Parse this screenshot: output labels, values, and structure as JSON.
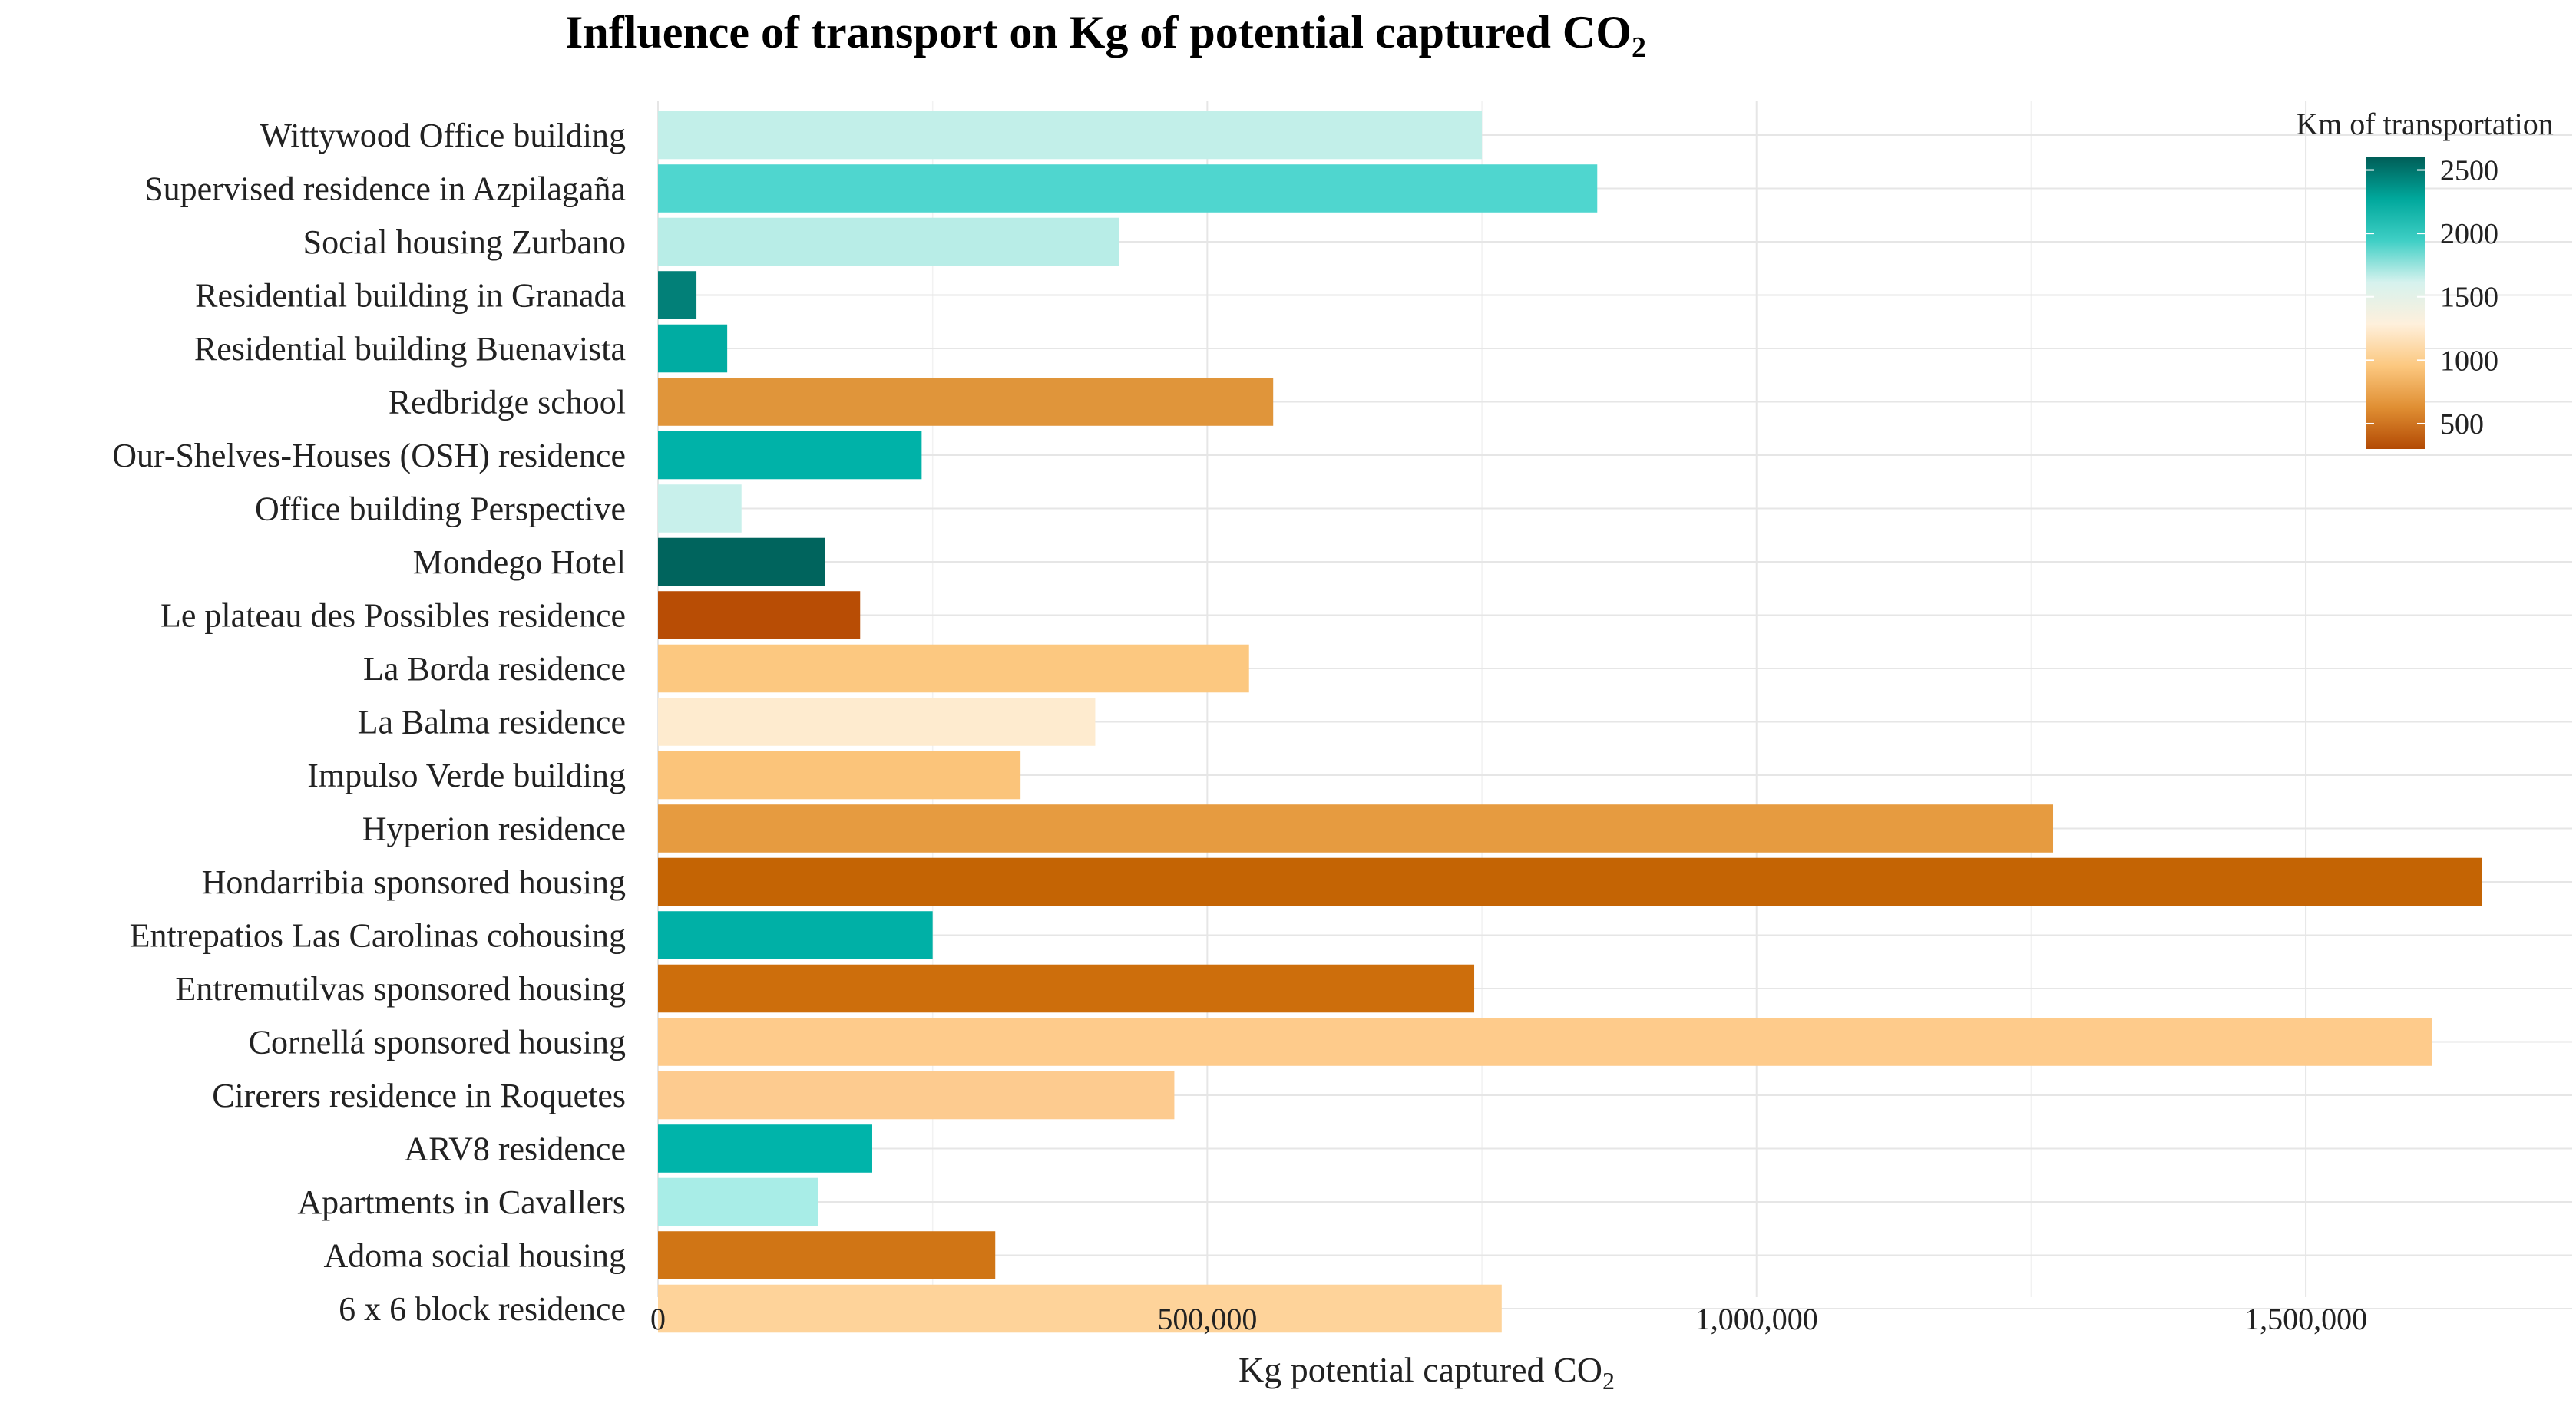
{
  "chart_data": {
    "type": "bar",
    "orientation": "horizontal",
    "title": "Influence of transport on Kg of potential captured CO",
    "title_subscript": "2",
    "xlabel": "Kg potential captured CO",
    "xlabel_subscript": "2",
    "ylabel": "",
    "xlim": [
      0,
      1750000
    ],
    "xticks": [
      0,
      500000,
      1000000,
      1500000
    ],
    "xtick_labels": [
      "0",
      "500,000",
      "1,000,000",
      "1,500,000"
    ],
    "grid": true,
    "legend": {
      "title": "Km of transportation",
      "placement": "top-right",
      "type": "colorbar",
      "range": [
        300,
        2600
      ],
      "ticks": [
        2500,
        2000,
        1500,
        1000,
        500
      ],
      "tick_labels": [
        "2500",
        "2000",
        "1500",
        "1000",
        "500"
      ],
      "colors": [
        "#b34a04",
        "#e08f33",
        "#fcc880",
        "#fef0dc",
        "#d6f2ee",
        "#3fcfc5",
        "#00a89c",
        "#005e58"
      ]
    },
    "categories": [
      "Wittywood Office building",
      "Supervised residence in Azpilagaña",
      "Social housing Zurbano",
      "Residential building in Granada",
      "Residential building Buenavista",
      "Redbridge school",
      "Our-Shelves-Houses (OSH) residence",
      "Office building Perspective",
      "Mondego Hotel",
      "Le plateau des Possibles residence",
      "La Borda residence",
      "La Balma residence",
      "Impulso Verde building",
      "Hyperion residence",
      "Hondarribia sponsored housing",
      "Entrepatios Las Carolinas cohousing",
      "Entremutilvas sponsored housing",
      "Cornellá sponsored housing",
      "Cirerers residence in Roquetes",
      "ARV8 residence",
      "Apartments in Cavallers",
      "Adoma social housing",
      "6 x 6 block residence"
    ],
    "values": [
      750000,
      855000,
      420000,
      35000,
      63000,
      560000,
      240000,
      76000,
      152000,
      184000,
      538000,
      398000,
      330000,
      1270000,
      1660000,
      250000,
      743000,
      1615000,
      470000,
      195000,
      146000,
      307000,
      768000
    ],
    "km_transport": [
      1600,
      1950,
      1600,
      2350,
      2200,
      600,
      2150,
      1500,
      2600,
      300,
      800,
      1050,
      750,
      650,
      400,
      2150,
      450,
      850,
      850,
      2150,
      1700,
      450,
      900
    ],
    "bar_colors": [
      "#c2efe9",
      "#4fd6cf",
      "#b8ede7",
      "#028078",
      "#00aca2",
      "#e0953a",
      "#00b2a8",
      "#c8f0eb",
      "#00645d",
      "#b84d05",
      "#fcc880",
      "#feebcf",
      "#fbc47a",
      "#e69b40",
      "#c46404",
      "#00b0a6",
      "#cd6e0c",
      "#fecb8b",
      "#fdcb8f",
      "#00b4aa",
      "#a8ede7",
      "#d07515",
      "#fed39a"
    ]
  }
}
